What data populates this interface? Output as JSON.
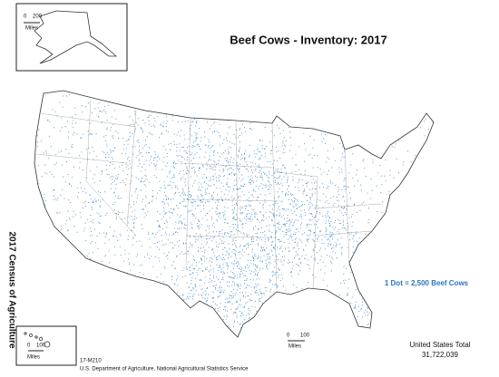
{
  "title": "Beef Cows - Inventory:  2017",
  "legend": "1 Dot = 2,500 Beef Cows",
  "total": {
    "label": "United States Total",
    "value": "31,722,039"
  },
  "side_title": "2017 Census of Agriculture",
  "footer": {
    "code": "17-M210",
    "agency": "U.S. Department of Agriculture, National Agricultural Statistics Service"
  },
  "alaska_scale": {
    "zero": "0",
    "max": "200",
    "unit": "Miles"
  },
  "hawaii_scale": {
    "zero": "0",
    "max": "100",
    "unit": "Miles"
  },
  "main_scale": {
    "zero": "0",
    "max": "100",
    "unit": "Miles"
  }
}
